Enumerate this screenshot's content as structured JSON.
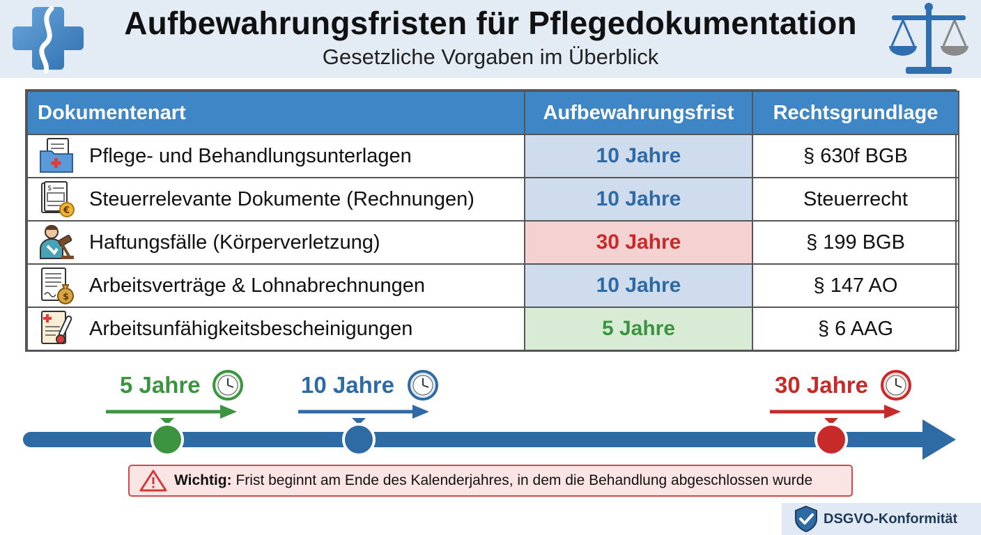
{
  "header": {
    "title": "Aufbewahrungsfristen für Pflegedokumentation",
    "subtitle": "Gesetzliche Vorgaben im Überblick",
    "left_icon": "medical-cross-icon",
    "right_icon": "scales-of-justice-icon"
  },
  "table": {
    "columns": [
      "Dokumentenart",
      "Aufbewahrungsfrist",
      "Rechtsgrundlage"
    ],
    "rows": [
      {
        "icon": "medical-folder-icon",
        "document": "Pflege- und Behandlungsunterlagen",
        "period": "10 Jahre",
        "period_color": "blue",
        "law": "§ 630f BGB"
      },
      {
        "icon": "invoice-icon",
        "document": "Steuerrelevante Dokumente (Rechnungen)",
        "period": "10 Jahre",
        "period_color": "blue",
        "law": "Steuerrecht"
      },
      {
        "icon": "injured-person-gavel-icon",
        "document": "Haftungsfälle (Körperverletzung)",
        "period": "30 Jahre",
        "period_color": "red",
        "law": "§ 199 BGB"
      },
      {
        "icon": "contract-money-bag-icon",
        "document": "Arbeitsverträge & Lohnabrechnungen",
        "period": "10 Jahre",
        "period_color": "blue",
        "law": "§ 147 AO"
      },
      {
        "icon": "sick-note-thermometer-icon",
        "document": "Arbeitsunfähigkeitsbescheinigungen",
        "period": "5 Jahre",
        "period_color": "green",
        "law": "§ 6 AAG"
      }
    ]
  },
  "timeline": {
    "markers": [
      {
        "label": "5 Jahre",
        "years": 5,
        "color": "#3c9440",
        "icon": "clock-icon"
      },
      {
        "label": "10 Jahre",
        "years": 10,
        "color": "#2e6aa3",
        "icon": "clock-icon"
      },
      {
        "label": "30 Jahre",
        "years": 30,
        "color": "#c82a2a",
        "icon": "clock-icon"
      }
    ],
    "axis_color": "#2e6aa3"
  },
  "warning": {
    "icon": "warning-triangle-icon",
    "label": "Wichtig:",
    "text": " Frist beginnt am Ende des Kalenderjahres, in dem die Behandlung abgeschlossen wurde"
  },
  "badge": {
    "icon": "shield-check-icon",
    "text": "DSGVO-Konformität"
  },
  "colors": {
    "header_bg": "#e3ebf5",
    "table_header_bg": "#3f86c6",
    "blue": "#2e6aa3",
    "red": "#c82a2a",
    "green": "#3c9440"
  }
}
